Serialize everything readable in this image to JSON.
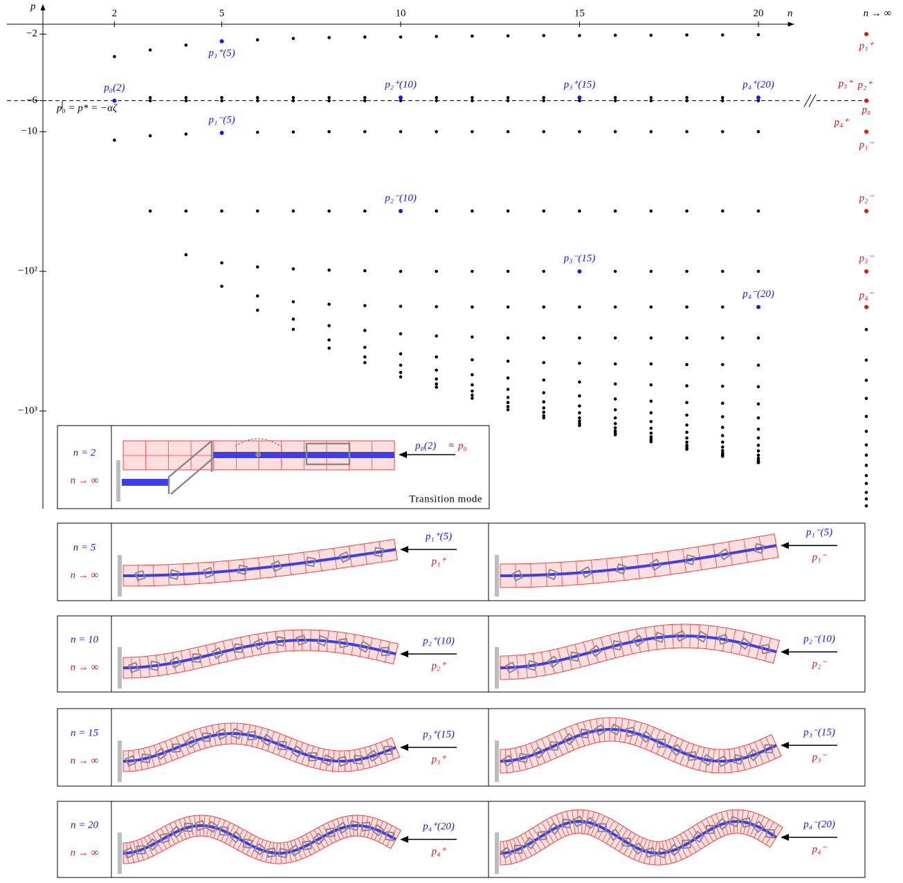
{
  "chart_data": {
    "type": "scatter",
    "xlabel": "n",
    "ylabel": "p",
    "xlim": [
      0,
      21
    ],
    "xticks": [
      2,
      5,
      10,
      15,
      20
    ],
    "yscale": "log",
    "ylim": [
      -1.7,
      -5000
    ],
    "yticks": [
      {
        "value": -2,
        "label": "−2"
      },
      {
        "value": -6,
        "label": "−6"
      },
      {
        "value": -10,
        "label": "−10"
      },
      {
        "value": -100,
        "label": "−10²"
      },
      {
        "value": -1000,
        "label": "−10³"
      }
    ],
    "color": "#000000",
    "columns": [
      {
        "x": 2,
        "values": [
          -2.9,
          -11.5
        ]
      },
      {
        "x": 3,
        "values": [
          -2.6,
          -5.7,
          -6,
          -10.7,
          -37
        ]
      },
      {
        "x": 4,
        "values": [
          -2.4,
          -5.7,
          -6,
          -10.4,
          -37,
          -76
        ]
      },
      {
        "x": 5,
        "values": [
          -5.7,
          -6,
          -37,
          -87,
          -128
        ]
      },
      {
        "x": 6,
        "values": [
          -2.2,
          -5.7,
          -6,
          -10.1,
          -37,
          -93,
          -150,
          -190
        ]
      },
      {
        "x": 7,
        "values": [
          -2.15,
          -5.7,
          -6,
          -10.05,
          -37,
          -96,
          -165,
          -220,
          -260
        ]
      },
      {
        "x": 8,
        "values": [
          -2.12,
          -5.7,
          -6,
          -10,
          -37,
          -98,
          -172,
          -245,
          -310,
          -355
        ]
      },
      {
        "x": 9,
        "values": [
          -2.1,
          -5.7,
          -6,
          -10,
          -37,
          -99,
          -176,
          -265,
          -350,
          -410,
          -450
        ]
      },
      {
        "x": 10,
        "values": [
          -2.1,
          -6,
          -10,
          -100,
          -178,
          -280,
          -390,
          -470,
          -530,
          -570
        ]
      },
      {
        "x": 11,
        "values": [
          -2.08,
          -5.7,
          -6,
          -10,
          -37,
          -100,
          -179,
          -290,
          -410,
          -510,
          -590,
          -640,
          -675
        ]
      },
      {
        "x": 12,
        "values": [
          -2.07,
          -5.7,
          -6,
          -10,
          -37,
          -100,
          -180,
          -295,
          -430,
          -550,
          -650,
          -720,
          -770,
          -810
        ]
      },
      {
        "x": 13,
        "values": [
          -2.06,
          -5.7,
          -6,
          -10,
          -37,
          -100,
          -180,
          -300,
          -440,
          -580,
          -700,
          -800,
          -870,
          -930,
          -980
        ]
      },
      {
        "x": 14,
        "values": [
          -2.05,
          -5.7,
          -6,
          -10,
          -37,
          -100,
          -180,
          -300,
          -450,
          -600,
          -740,
          -860,
          -950,
          -1020,
          -1080,
          -1120
        ]
      },
      {
        "x": 15,
        "values": [
          -2.05,
          -6,
          -10,
          -37,
          -180,
          -300,
          -455,
          -620,
          -780,
          -920,
          -1030,
          -1120,
          -1180,
          -1230,
          -1270
        ]
      },
      {
        "x": 16,
        "values": [
          -2.04,
          -5.7,
          -6,
          -10,
          -37,
          -100,
          -180,
          -300,
          -460,
          -640,
          -820,
          -980,
          -1120,
          -1230,
          -1320,
          -1390,
          -1440,
          -1480
        ]
      },
      {
        "x": 17,
        "values": [
          -2.04,
          -5.7,
          -6,
          -10,
          -37,
          -100,
          -180,
          -300,
          -460,
          -650,
          -850,
          -1030,
          -1190,
          -1330,
          -1440,
          -1530,
          -1590,
          -1630,
          -1660
        ]
      },
      {
        "x": 18,
        "values": [
          -2.03,
          -5.7,
          -6,
          -10,
          -37,
          -100,
          -180,
          -300,
          -465,
          -660,
          -870,
          -1070,
          -1260,
          -1420,
          -1560,
          -1670,
          -1760,
          -1820,
          -1860,
          -1880
        ]
      },
      {
        "x": 19,
        "values": [
          -2.03,
          -5.7,
          -6,
          -10,
          -37,
          -100,
          -180,
          -300,
          -465,
          -665,
          -880,
          -1100,
          -1310,
          -1500,
          -1670,
          -1810,
          -1920,
          -2000,
          -2060,
          -2090,
          -2110
        ]
      },
      {
        "x": 20,
        "values": [
          -2.02,
          -6,
          -10,
          -37,
          -100,
          -300,
          -470,
          -670,
          -890,
          -1120,
          -1350,
          -1560,
          -1760,
          -1930,
          -2070,
          -2180,
          -2260,
          -2310,
          -2330,
          -2340
        ]
      }
    ],
    "highlights": {
      "color": "#1515ff",
      "points": [
        {
          "x": 2,
          "value": -6,
          "label": "p₀(2)"
        },
        {
          "x": 5,
          "value": -2.25,
          "label": "p₁⁺(5)"
        },
        {
          "x": 5,
          "value": -10.2,
          "label": "p₁⁻(5)"
        },
        {
          "x": 10,
          "value": -5.7,
          "label": "p₂⁺(10)"
        },
        {
          "x": 10,
          "value": -37,
          "label": "p₂⁻(10)"
        },
        {
          "x": 15,
          "value": -5.7,
          "label": "p₃⁺(15)"
        },
        {
          "x": 15,
          "value": -100,
          "label": "p₃⁻(15)"
        },
        {
          "x": 20,
          "value": -5.7,
          "label": "p₄⁺(20)"
        },
        {
          "x": 20,
          "value": -180,
          "label": "p₄⁻(20)"
        }
      ]
    },
    "limit": {
      "label": "n → ∞",
      "color": "#ee1111",
      "points": [
        {
          "value": -2,
          "label": "p₁⁺"
        },
        {
          "value": -6,
          "label": "p₃⁺"
        },
        {
          "value": -6,
          "label": "p₂⁺"
        },
        {
          "value": -6,
          "label": "p₀"
        },
        {
          "value": -6,
          "label": "p₄⁺"
        },
        {
          "value": -10,
          "label": "p₁⁻"
        },
        {
          "value": -37,
          "label": "p₂⁻"
        },
        {
          "value": -100,
          "label": "p₃⁻"
        },
        {
          "value": -180,
          "label": "p₄⁻"
        }
      ],
      "values": [
        -261,
        -432,
        -603,
        -813,
        -1094,
        -1400,
        -1750,
        -2070,
        -2450,
        -2900,
        -3300,
        -3830,
        -4260,
        -4780
      ]
    },
    "reference_line": -6,
    "annotation": "p₀ = p* = −αζ"
  },
  "panels": {
    "finite_color": "#1515ff",
    "limit_color": "#ee1111",
    "rows": [
      {
        "n_label": "n = 2",
        "limit_label": "n → ∞",
        "modes": [
          {
            "finite": "p₀(2)",
            "joiner": "=",
            "limit": "p₀"
          }
        ],
        "caption": "Transition mode"
      },
      {
        "n_label": "n = 5",
        "limit_label": "n → ∞",
        "modes": [
          {
            "finite": "p₁⁺(5)",
            "limit": "p₁⁺"
          },
          {
            "finite": "p₁⁻(5)",
            "limit": "p₁⁻"
          }
        ]
      },
      {
        "n_label": "n = 10",
        "limit_label": "n → ∞",
        "modes": [
          {
            "finite": "p₂⁺(10)",
            "limit": "p₂⁺"
          },
          {
            "finite": "p₂⁻(10)",
            "limit": "p₂⁻"
          }
        ]
      },
      {
        "n_label": "n = 15",
        "limit_label": "n → ∞",
        "modes": [
          {
            "finite": "p₃⁺(15)",
            "limit": "p₃⁺"
          },
          {
            "finite": "p₃⁻(15)",
            "limit": "p₃⁻"
          }
        ]
      },
      {
        "n_label": "n = 20",
        "limit_label": "n → ∞",
        "modes": [
          {
            "finite": "p₄⁺(20)",
            "limit": "p₄⁺"
          },
          {
            "finite": "p₄⁻(20)",
            "limit": "p₄⁻"
          }
        ]
      }
    ]
  }
}
